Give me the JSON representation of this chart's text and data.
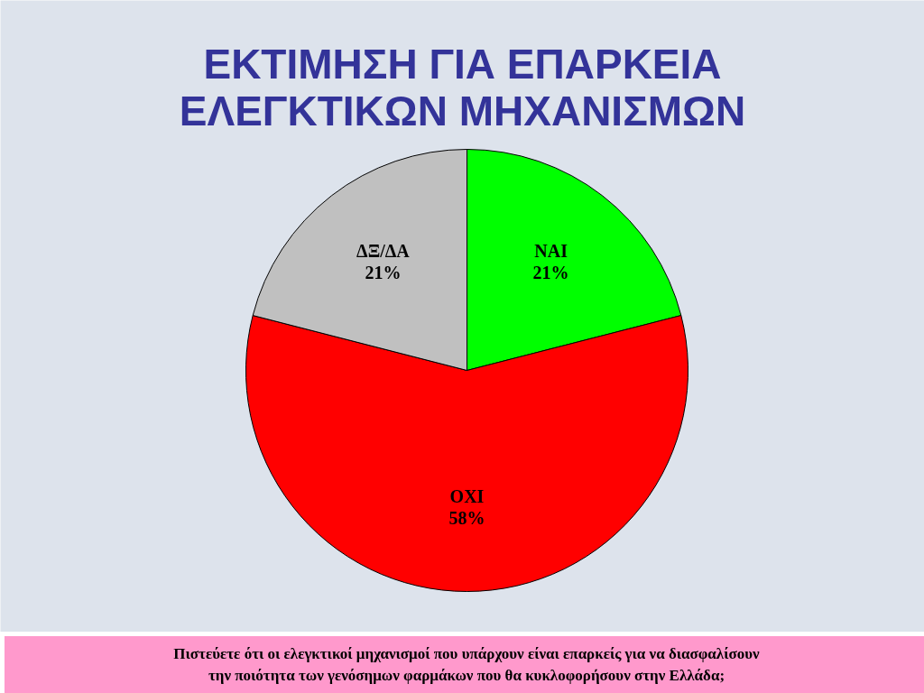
{
  "chart_data": {
    "type": "pie",
    "title": "ΕΚΤΙΜΗΣΗ ΓΙΑ ΕΠΑΡΚΕΙΑ\nΕΛΕΓΚΤΙΚΩΝ ΜΗΧΑΝΙΣΜΩΝ",
    "categories": [
      "ΝΑΙ",
      "ΟΧΙ",
      "ΔΞ/ΔΑ"
    ],
    "values": [
      21,
      58,
      21
    ],
    "colors": [
      "#00ff00",
      "#ff0000",
      "#c0c0c0"
    ],
    "value_labels": [
      "21%",
      "58%",
      "21%"
    ],
    "annotations": [
      "Πιστεύετε ότι οι ελεγκτικοί μηχανισμοί που υπάρχουν είναι επαρκείς για να διασφαλίσουν\nτην ποιότητα των γενόσημων φαρμάκων που θα κυκλοφορήσουν στην Ελλάδα;"
    ]
  }
}
